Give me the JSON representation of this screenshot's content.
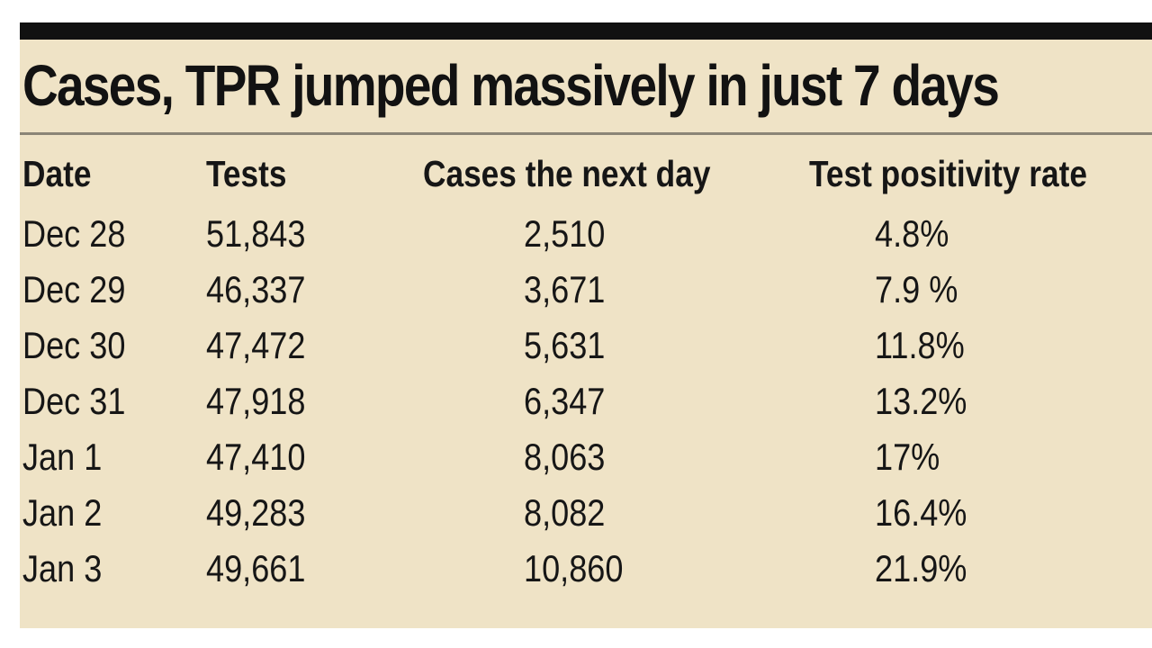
{
  "chart_data": {
    "type": "table",
    "title": "Cases, TPR jumped massively in just 7 days",
    "columns": [
      "Date",
      "Tests",
      "Cases the next day",
      "Test positivity rate"
    ],
    "rows": [
      {
        "date": "Dec 28",
        "tests": "51,843",
        "cases": "2,510",
        "tpr": "4.8%"
      },
      {
        "date": "Dec 29",
        "tests": "46,337",
        "cases": "3,671",
        "tpr": "7.9 %"
      },
      {
        "date": "Dec 30",
        "tests": "47,472",
        "cases": "5,631",
        "tpr": "11.8%"
      },
      {
        "date": "Dec 31",
        "tests": "47,918",
        "cases": "6,347",
        "tpr": "13.2%"
      },
      {
        "date": "Jan 1",
        "tests": "47,410",
        "cases": "8,063",
        "tpr": "17%"
      },
      {
        "date": "Jan 2",
        "tests": "49,283",
        "cases": "8,082",
        "tpr": "16.4%"
      },
      {
        "date": "Jan 3",
        "tests": "49,661",
        "cases": "10,860",
        "tpr": "21.9%"
      }
    ]
  }
}
